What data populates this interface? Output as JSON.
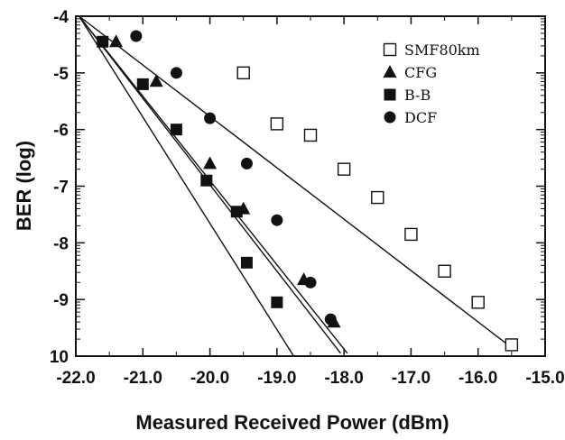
{
  "chart_data": {
    "type": "scatter",
    "xlabel": "Measured Received Power (dBm)",
    "ylabel": "BER (log)",
    "xlim": [
      -22.0,
      -15.0
    ],
    "ylim": [
      -4,
      -10
    ],
    "y_scale": "log",
    "grid": false,
    "legend_position": "top-right",
    "x_tick_labels": [
      "-22.0",
      "-21.0",
      "-20.0",
      "-19.0",
      "-18.0",
      "-17.0",
      "-16.0",
      "-15.0"
    ],
    "y_tick_labels": [
      "-4",
      "-5",
      "-6",
      "-7",
      "-8",
      "-9",
      "10"
    ],
    "series": [
      {
        "name": "SMF80km",
        "marker": "open-square",
        "points": [
          [
            -19.5,
            -5.0
          ],
          [
            -19.0,
            -5.9
          ],
          [
            -18.5,
            -6.1
          ],
          [
            -18.0,
            -6.7
          ],
          [
            -17.5,
            -7.2
          ],
          [
            -17.0,
            -7.85
          ],
          [
            -16.5,
            -8.5
          ],
          [
            -16.0,
            -9.05
          ],
          [
            -15.5,
            -9.8
          ]
        ],
        "fit": [
          [
            -21.95,
            -4.0
          ],
          [
            -15.5,
            -9.85
          ]
        ]
      },
      {
        "name": "CFG",
        "marker": "filled-triangle",
        "points": [
          [
            -21.4,
            -4.45
          ],
          [
            -20.8,
            -5.15
          ],
          [
            -20.0,
            -6.6
          ],
          [
            -19.5,
            -7.4
          ],
          [
            -18.6,
            -8.65
          ],
          [
            -18.15,
            -9.4
          ]
        ],
        "fit": [
          [
            -21.95,
            -4.0
          ],
          [
            -18.05,
            -9.95
          ]
        ]
      },
      {
        "name": "B-B",
        "marker": "filled-square",
        "points": [
          [
            -21.6,
            -4.45
          ],
          [
            -21.0,
            -5.2
          ],
          [
            -20.5,
            -6.0
          ],
          [
            -20.05,
            -6.9
          ],
          [
            -19.6,
            -7.45
          ],
          [
            -19.45,
            -8.35
          ],
          [
            -19.0,
            -9.05
          ]
        ],
        "fit": [
          [
            -21.95,
            -4.0
          ],
          [
            -18.75,
            -10.0
          ]
        ]
      },
      {
        "name": "DCF",
        "marker": "filled-circle",
        "points": [
          [
            -21.1,
            -4.35
          ],
          [
            -20.5,
            -5.0
          ],
          [
            -20.0,
            -5.8
          ],
          [
            -19.45,
            -6.6
          ],
          [
            -19.0,
            -7.6
          ],
          [
            -18.5,
            -8.7
          ],
          [
            -18.2,
            -9.35
          ]
        ],
        "fit": [
          [
            -21.95,
            -4.0
          ],
          [
            -17.95,
            -9.95
          ]
        ]
      }
    ]
  }
}
